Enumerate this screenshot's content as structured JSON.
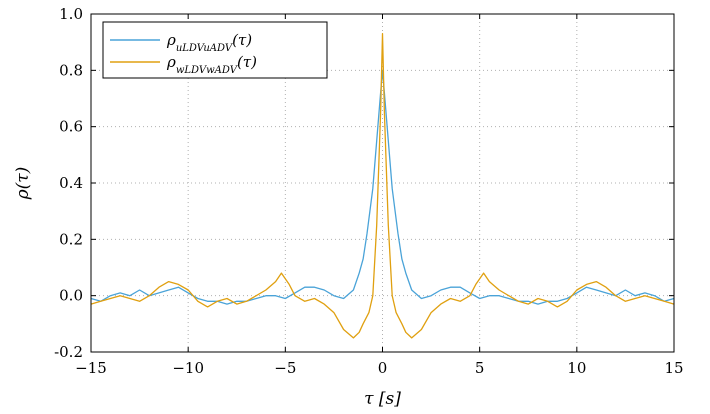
{
  "chart_data": {
    "type": "line",
    "title": "",
    "xlabel": "τ [s]",
    "ylabel": "ρ(τ)",
    "xlim": [
      -15,
      15
    ],
    "ylim": [
      -0.2,
      1.0
    ],
    "xticks": [
      -15,
      -10,
      -5,
      0,
      5,
      10,
      15
    ],
    "xtick_labels": [
      "−15",
      "−10",
      "−5",
      "0",
      "5",
      "10",
      "15"
    ],
    "yticks": [
      -0.2,
      0.0,
      0.2,
      0.4,
      0.6,
      0.8,
      1.0
    ],
    "ytick_labels": [
      "-0.2",
      "0.0",
      "0.2",
      "0.4",
      "0.6",
      "0.8",
      "1.0"
    ],
    "grid": true,
    "legend_position": "top-left",
    "series": [
      {
        "name": "ρuLDVuADV(τ)",
        "name_base": "ρ",
        "name_sub": "uLDVuADV",
        "name_suffix": "(τ)",
        "color": "#4aa3d8",
        "points": [
          [
            -15,
            -0.01
          ],
          [
            -14.5,
            -0.02
          ],
          [
            -14,
            0.0
          ],
          [
            -13.5,
            0.01
          ],
          [
            -13,
            0.0
          ],
          [
            -12.5,
            0.02
          ],
          [
            -12,
            0.0
          ],
          [
            -11.5,
            0.01
          ],
          [
            -11,
            0.02
          ],
          [
            -10.5,
            0.03
          ],
          [
            -10,
            0.01
          ],
          [
            -9.5,
            -0.01
          ],
          [
            -9,
            -0.02
          ],
          [
            -8.5,
            -0.02
          ],
          [
            -8,
            -0.03
          ],
          [
            -7.5,
            -0.02
          ],
          [
            -7,
            -0.02
          ],
          [
            -6.5,
            -0.01
          ],
          [
            -6,
            0.0
          ],
          [
            -5.5,
            0.0
          ],
          [
            -5,
            -0.01
          ],
          [
            -4.5,
            0.01
          ],
          [
            -4,
            0.03
          ],
          [
            -3.5,
            0.03
          ],
          [
            -3,
            0.02
          ],
          [
            -2.5,
            0.0
          ],
          [
            -2,
            -0.01
          ],
          [
            -1.5,
            0.02
          ],
          [
            -1.2,
            0.08
          ],
          [
            -1,
            0.13
          ],
          [
            -0.8,
            0.22
          ],
          [
            -0.5,
            0.38
          ],
          [
            -0.3,
            0.55
          ],
          [
            -0.1,
            0.72
          ],
          [
            0,
            0.8
          ],
          [
            0.1,
            0.72
          ],
          [
            0.3,
            0.55
          ],
          [
            0.5,
            0.38
          ],
          [
            0.8,
            0.22
          ],
          [
            1,
            0.13
          ],
          [
            1.2,
            0.08
          ],
          [
            1.5,
            0.02
          ],
          [
            2,
            -0.01
          ],
          [
            2.5,
            0.0
          ],
          [
            3,
            0.02
          ],
          [
            3.5,
            0.03
          ],
          [
            4,
            0.03
          ],
          [
            4.5,
            0.01
          ],
          [
            5,
            -0.01
          ],
          [
            5.5,
            0.0
          ],
          [
            6,
            0.0
          ],
          [
            6.5,
            -0.01
          ],
          [
            7,
            -0.02
          ],
          [
            7.5,
            -0.02
          ],
          [
            8,
            -0.03
          ],
          [
            8.5,
            -0.02
          ],
          [
            9,
            -0.02
          ],
          [
            9.5,
            -0.01
          ],
          [
            10,
            0.01
          ],
          [
            10.5,
            0.03
          ],
          [
            11,
            0.02
          ],
          [
            11.5,
            0.01
          ],
          [
            12,
            0.0
          ],
          [
            12.5,
            0.02
          ],
          [
            13,
            0.0
          ],
          [
            13.5,
            0.01
          ],
          [
            14,
            0.0
          ],
          [
            14.5,
            -0.02
          ],
          [
            15,
            -0.01
          ]
        ]
      },
      {
        "name": "ρwLDVwADV(τ)",
        "name_base": "ρ",
        "name_sub": "wLDVwADV",
        "name_suffix": "(τ)",
        "color": "#e0a010",
        "points": [
          [
            -15,
            -0.03
          ],
          [
            -14.5,
            -0.02
          ],
          [
            -14,
            -0.01
          ],
          [
            -13.5,
            0.0
          ],
          [
            -13,
            -0.01
          ],
          [
            -12.5,
            -0.02
          ],
          [
            -12,
            0.0
          ],
          [
            -11.5,
            0.03
          ],
          [
            -11,
            0.05
          ],
          [
            -10.5,
            0.04
          ],
          [
            -10,
            0.02
          ],
          [
            -9.5,
            -0.02
          ],
          [
            -9,
            -0.04
          ],
          [
            -8.5,
            -0.02
          ],
          [
            -8,
            -0.01
          ],
          [
            -7.5,
            -0.03
          ],
          [
            -7,
            -0.02
          ],
          [
            -6.5,
            0.0
          ],
          [
            -6,
            0.02
          ],
          [
            -5.5,
            0.05
          ],
          [
            -5.2,
            0.08
          ],
          [
            -4.8,
            0.04
          ],
          [
            -4.5,
            0.0
          ],
          [
            -4,
            -0.02
          ],
          [
            -3.5,
            -0.01
          ],
          [
            -3,
            -0.03
          ],
          [
            -2.5,
            -0.06
          ],
          [
            -2,
            -0.12
          ],
          [
            -1.5,
            -0.15
          ],
          [
            -1.2,
            -0.13
          ],
          [
            -1,
            -0.1
          ],
          [
            -0.7,
            -0.06
          ],
          [
            -0.5,
            0.0
          ],
          [
            -0.3,
            0.25
          ],
          [
            -0.1,
            0.65
          ],
          [
            0,
            0.93
          ],
          [
            0.1,
            0.65
          ],
          [
            0.3,
            0.25
          ],
          [
            0.5,
            0.0
          ],
          [
            0.7,
            -0.06
          ],
          [
            1,
            -0.1
          ],
          [
            1.2,
            -0.13
          ],
          [
            1.5,
            -0.15
          ],
          [
            2,
            -0.12
          ],
          [
            2.5,
            -0.06
          ],
          [
            3,
            -0.03
          ],
          [
            3.5,
            -0.01
          ],
          [
            4,
            -0.02
          ],
          [
            4.5,
            0.0
          ],
          [
            4.8,
            0.04
          ],
          [
            5.2,
            0.08
          ],
          [
            5.5,
            0.05
          ],
          [
            6,
            0.02
          ],
          [
            6.5,
            0.0
          ],
          [
            7,
            -0.02
          ],
          [
            7.5,
            -0.03
          ],
          [
            8,
            -0.01
          ],
          [
            8.5,
            -0.02
          ],
          [
            9,
            -0.04
          ],
          [
            9.5,
            -0.02
          ],
          [
            10,
            0.02
          ],
          [
            10.5,
            0.04
          ],
          [
            11,
            0.05
          ],
          [
            11.5,
            0.03
          ],
          [
            12,
            0.0
          ],
          [
            12.5,
            -0.02
          ],
          [
            13,
            -0.01
          ],
          [
            13.5,
            0.0
          ],
          [
            14,
            -0.01
          ],
          [
            14.5,
            -0.02
          ],
          [
            15,
            -0.03
          ]
        ]
      }
    ]
  }
}
